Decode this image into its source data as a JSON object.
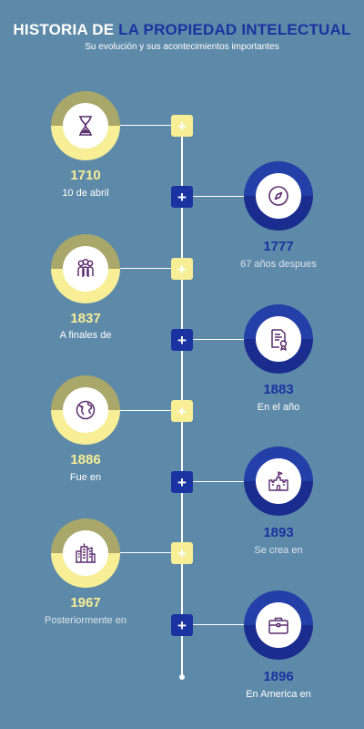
{
  "header": {
    "title_white": "HISTORIA DE ",
    "title_blue": "LA PROPIEDAD INTELECTUAL",
    "subtitle": "Su evolución y sus acontecimientos importantes"
  },
  "colors": {
    "background": "#5e8aa9",
    "yellow": "#f7ee96",
    "olive": "#a9a76a",
    "blue": "#1a33a0",
    "white": "#ffffff"
  },
  "timeline": [
    {
      "side": "left",
      "year": "1710",
      "text": "10 de abril",
      "icon": "hourglass-icon"
    },
    {
      "side": "right",
      "year": "1777",
      "text": "67 años despues",
      "icon": "compass-icon"
    },
    {
      "side": "left",
      "year": "1837",
      "text": "A finales de",
      "icon": "people-icon"
    },
    {
      "side": "right",
      "year": "1883",
      "text": "En el año",
      "icon": "certificate-icon"
    },
    {
      "side": "left",
      "year": "1886",
      "text": "Fue en",
      "icon": "globe-icon"
    },
    {
      "side": "right",
      "year": "1893",
      "text": "Se crea en",
      "icon": "castle-icon"
    },
    {
      "side": "left",
      "year": "1967",
      "text": "Posteriormente en",
      "icon": "buildings-icon"
    },
    {
      "side": "right",
      "year": "1896",
      "text": "En America en",
      "icon": "briefcase-icon"
    }
  ],
  "expand_symbol": "+"
}
